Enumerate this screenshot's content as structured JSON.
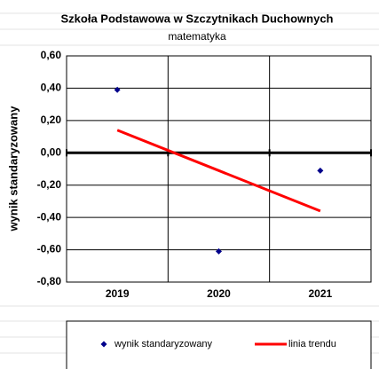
{
  "chart_data": {
    "type": "line",
    "title": "Szkoła Podstawowa w Szczytnikach Duchownych",
    "subtitle": "matematyka",
    "y_label": "wynik standaryzowany",
    "categories": [
      "2019",
      "2020",
      "2021"
    ],
    "series": [
      {
        "name": "wynik standaryzowany",
        "color": "#00008b",
        "type": "scatter",
        "values": [
          0.39,
          -0.61,
          -0.11
        ]
      },
      {
        "name": "linia trendu",
        "color": "#ff0000",
        "type": "line",
        "values": [
          0.14,
          -0.11,
          -0.36
        ]
      }
    ],
    "ylim": [
      -0.8,
      0.6
    ],
    "yticks": [
      {
        "value": -0.8,
        "label": "-0,80"
      },
      {
        "value": -0.6,
        "label": "-0,60"
      },
      {
        "value": -0.4,
        "label": "-0,40"
      },
      {
        "value": -0.2,
        "label": "-0,20"
      },
      {
        "value": 0,
        "label": "0,00"
      },
      {
        "value": 0.2,
        "label": "0,20"
      },
      {
        "value": 0.4,
        "label": "0,40"
      },
      {
        "value": 0.6,
        "label": "0,60"
      }
    ],
    "grid": true
  }
}
